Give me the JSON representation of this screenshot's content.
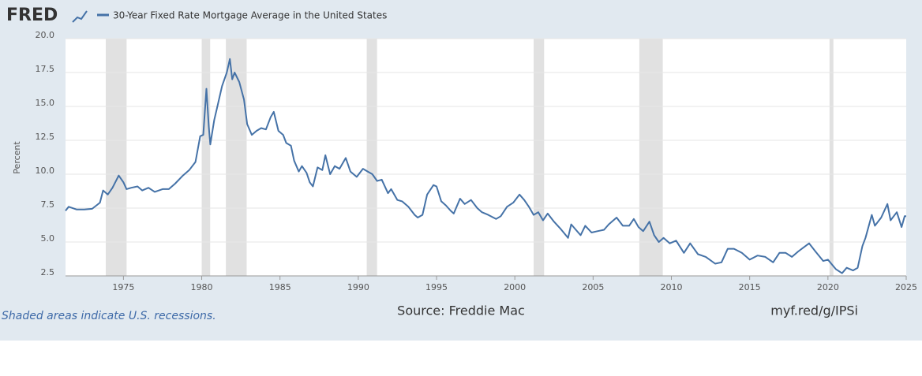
{
  "logo": "FRED",
  "chart_data": {
    "type": "line",
    "y_label": "Percent",
    "note": "Shaded areas indicate U.S. recessions.",
    "source": "Source: Freddie Mac",
    "link": "myf.red/g/IPSi",
    "xlim": [
      1971.3,
      2025.0
    ],
    "xticks": [
      1975,
      1980,
      1985,
      1990,
      1995,
      2000,
      2005,
      2010,
      2015,
      2020,
      2025
    ],
    "ylim": [
      2.5,
      20.0
    ],
    "yticks": [
      2.5,
      {
        "value": 5,
        "label": "5.0"
      },
      7.5,
      {
        "value": 10,
        "label": "10.0"
      },
      12.5,
      {
        "value": 15,
        "label": "15.0"
      },
      17.5,
      {
        "value": 20,
        "label": "20.0"
      }
    ],
    "grid": true,
    "recessions": [
      [
        1973.87,
        1975.2
      ],
      [
        1980.0,
        1980.54
      ],
      [
        1981.54,
        1982.87
      ],
      [
        1990.54,
        1991.2
      ],
      [
        2001.2,
        2001.87
      ],
      [
        2007.95,
        2009.45
      ],
      [
        2020.1,
        2020.35
      ]
    ],
    "recession_color": "#e1e1e1",
    "x": [
      1971.3,
      1971.5,
      1972.0,
      1972.5,
      1973.0,
      1973.5,
      1973.7,
      1974.0,
      1974.3,
      1974.7,
      1975.0,
      1975.2,
      1975.5,
      1975.9,
      1976.2,
      1976.6,
      1977.0,
      1977.5,
      1977.9,
      1978.3,
      1978.8,
      1979.2,
      1979.6,
      1979.9,
      1980.1,
      1980.3,
      1980.45,
      1980.55,
      1980.8,
      1981.0,
      1981.3,
      1981.6,
      1981.8,
      1981.95,
      1982.1,
      1982.4,
      1982.7,
      1982.9,
      1983.2,
      1983.5,
      1983.8,
      1984.1,
      1984.4,
      1984.6,
      1984.9,
      1985.2,
      1985.4,
      1985.7,
      1985.9,
      1986.2,
      1986.4,
      1986.7,
      1986.9,
      1987.1,
      1987.4,
      1987.7,
      1987.9,
      1988.2,
      1988.5,
      1988.8,
      1989.2,
      1989.5,
      1989.9,
      1990.3,
      1990.6,
      1990.9,
      1991.2,
      1991.5,
      1991.9,
      1992.1,
      1992.5,
      1992.8,
      1993.2,
      1993.6,
      1993.8,
      1994.1,
      1994.4,
      1994.8,
      1995.0,
      1995.3,
      1995.6,
      1995.9,
      1996.1,
      1996.5,
      1996.8,
      1997.2,
      1997.6,
      1997.9,
      1998.3,
      1998.8,
      1999.1,
      1999.5,
      1999.9,
      2000.3,
      2000.6,
      2000.9,
      2001.2,
      2001.5,
      2001.8,
      2002.1,
      2002.5,
      2002.9,
      2003.4,
      2003.6,
      2003.9,
      2004.2,
      2004.5,
      2004.9,
      2005.3,
      2005.7,
      2006.0,
      2006.5,
      2006.9,
      2007.3,
      2007.6,
      2007.9,
      2008.2,
      2008.6,
      2008.9,
      2009.2,
      2009.5,
      2009.9,
      2010.3,
      2010.8,
      2011.2,
      2011.7,
      2012.2,
      2012.8,
      2013.2,
      2013.6,
      2014.0,
      2014.5,
      2015.0,
      2015.5,
      2016.0,
      2016.5,
      2016.9,
      2017.3,
      2017.7,
      2018.1,
      2018.8,
      2019.2,
      2019.7,
      2020.0,
      2020.5,
      2020.9,
      2021.2,
      2021.6,
      2021.9,
      2022.2,
      2022.4,
      2022.8,
      2023.0,
      2023.4,
      2023.8,
      2024.0,
      2024.4,
      2024.7,
      2024.9,
      2025.0
    ],
    "series": [
      {
        "name": "30-Year Fixed Rate Mortgage Average in the United States",
        "color": "#4572a7",
        "values": [
          7.3,
          7.6,
          7.4,
          7.4,
          7.45,
          7.9,
          8.8,
          8.5,
          9.0,
          9.9,
          9.4,
          8.9,
          9.0,
          9.1,
          8.8,
          9.0,
          8.7,
          8.9,
          8.9,
          9.3,
          9.9,
          10.3,
          10.9,
          12.8,
          12.9,
          16.3,
          13.5,
          12.2,
          14.0,
          15.0,
          16.5,
          17.5,
          18.5,
          17.0,
          17.5,
          16.8,
          15.5,
          13.7,
          12.9,
          13.2,
          13.4,
          13.3,
          14.2,
          14.6,
          13.2,
          12.9,
          12.3,
          12.1,
          11.0,
          10.2,
          10.6,
          10.1,
          9.4,
          9.1,
          10.5,
          10.3,
          11.4,
          10.0,
          10.6,
          10.4,
          11.2,
          10.2,
          9.8,
          10.4,
          10.2,
          10.0,
          9.5,
          9.6,
          8.6,
          8.9,
          8.1,
          8.0,
          7.6,
          7.0,
          6.8,
          7.0,
          8.5,
          9.2,
          9.1,
          8.0,
          7.7,
          7.3,
          7.1,
          8.2,
          7.8,
          8.1,
          7.5,
          7.2,
          7.0,
          6.7,
          6.9,
          7.6,
          7.9,
          8.5,
          8.1,
          7.6,
          7.0,
          7.2,
          6.6,
          7.1,
          6.5,
          6.0,
          5.3,
          6.3,
          5.9,
          5.5,
          6.2,
          5.7,
          5.8,
          5.9,
          6.3,
          6.8,
          6.2,
          6.2,
          6.7,
          6.1,
          5.8,
          6.5,
          5.5,
          5.0,
          5.3,
          4.9,
          5.1,
          4.2,
          4.9,
          4.1,
          3.9,
          3.4,
          3.5,
          4.5,
          4.5,
          4.2,
          3.7,
          4.0,
          3.9,
          3.5,
          4.2,
          4.2,
          3.9,
          4.3,
          4.9,
          4.3,
          3.6,
          3.7,
          3.0,
          2.7,
          3.1,
          2.9,
          3.1,
          4.7,
          5.3,
          7.0,
          6.2,
          6.8,
          7.8,
          6.6,
          7.2,
          6.1,
          6.9,
          6.9
        ]
      }
    ]
  }
}
